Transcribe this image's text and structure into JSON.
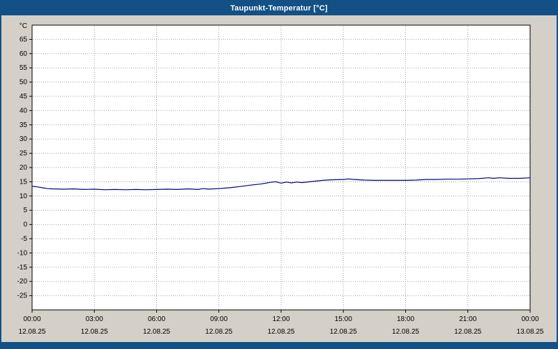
{
  "window": {
    "title": "Taupunkt-Temperatur [°C]"
  },
  "colors": {
    "titlebar": "#125086",
    "window_background": "#d4d0c8",
    "plot_background": "#ffffff",
    "grid": "#a0a0a0",
    "axis": "#000000",
    "line": "#000080",
    "tick_label": "#000000"
  },
  "chart_data": {
    "type": "line",
    "title": "Taupunkt-Temperatur [°C]",
    "xlabel": "",
    "ylabel": "°C",
    "ylim": [
      -30,
      70
    ],
    "yticks": [
      -25,
      -20,
      -15,
      -10,
      -5,
      0,
      5,
      10,
      15,
      20,
      25,
      30,
      35,
      40,
      45,
      50,
      55,
      60,
      65
    ],
    "xlim_hours": [
      0,
      24
    ],
    "grid": true,
    "legend_position": "none",
    "xticks": [
      {
        "hour": 0,
        "time": "00:00",
        "date": "12.08.25"
      },
      {
        "hour": 3,
        "time": "03:00",
        "date": "12.08.25"
      },
      {
        "hour": 6,
        "time": "06:00",
        "date": "12.08.25"
      },
      {
        "hour": 9,
        "time": "09:00",
        "date": "12.08.25"
      },
      {
        "hour": 12,
        "time": "12:00",
        "date": "12.08.25"
      },
      {
        "hour": 15,
        "time": "15:00",
        "date": "12.08.25"
      },
      {
        "hour": 18,
        "time": "18:00",
        "date": "12.08.25"
      },
      {
        "hour": 21,
        "time": "21:00",
        "date": "12.08.25"
      },
      {
        "hour": 24,
        "time": "00:00",
        "date": "13.08.25"
      }
    ],
    "series": [
      {
        "name": "Taupunkt-Temperatur",
        "color": "#000080",
        "points": [
          [
            0,
            13.4
          ],
          [
            0.25,
            13.2
          ],
          [
            0.5,
            12.9
          ],
          [
            0.75,
            12.6
          ],
          [
            1,
            12.5
          ],
          [
            1.5,
            12.4
          ],
          [
            2,
            12.5
          ],
          [
            2.5,
            12.3
          ],
          [
            3,
            12.4
          ],
          [
            3.5,
            12.2
          ],
          [
            4,
            12.3
          ],
          [
            4.5,
            12.2
          ],
          [
            5,
            12.3
          ],
          [
            5.5,
            12.2
          ],
          [
            6,
            12.3
          ],
          [
            6.5,
            12.4
          ],
          [
            7,
            12.3
          ],
          [
            7.5,
            12.5
          ],
          [
            8,
            12.3
          ],
          [
            8.25,
            12.6
          ],
          [
            8.5,
            12.4
          ],
          [
            9,
            12.6
          ],
          [
            9.5,
            12.9
          ],
          [
            10,
            13.3
          ],
          [
            10.5,
            13.8
          ],
          [
            11,
            14.2
          ],
          [
            11.5,
            14.8
          ],
          [
            11.75,
            15.0
          ],
          [
            12,
            14.5
          ],
          [
            12.25,
            14.9
          ],
          [
            12.5,
            14.6
          ],
          [
            12.75,
            14.9
          ],
          [
            13,
            14.7
          ],
          [
            13.5,
            15.1
          ],
          [
            14,
            15.5
          ],
          [
            14.5,
            15.7
          ],
          [
            15,
            15.8
          ],
          [
            15.25,
            16.0
          ],
          [
            15.5,
            15.8
          ],
          [
            16,
            15.6
          ],
          [
            16.5,
            15.5
          ],
          [
            17,
            15.5
          ],
          [
            17.5,
            15.5
          ],
          [
            18,
            15.5
          ],
          [
            18.5,
            15.6
          ],
          [
            19,
            15.8
          ],
          [
            19.5,
            15.8
          ],
          [
            20,
            15.9
          ],
          [
            20.5,
            15.9
          ],
          [
            21,
            16.0
          ],
          [
            21.5,
            16.1
          ],
          [
            22,
            16.4
          ],
          [
            22.25,
            16.2
          ],
          [
            22.5,
            16.4
          ],
          [
            23,
            16.2
          ],
          [
            23.5,
            16.2
          ],
          [
            24,
            16.4
          ]
        ]
      }
    ]
  }
}
